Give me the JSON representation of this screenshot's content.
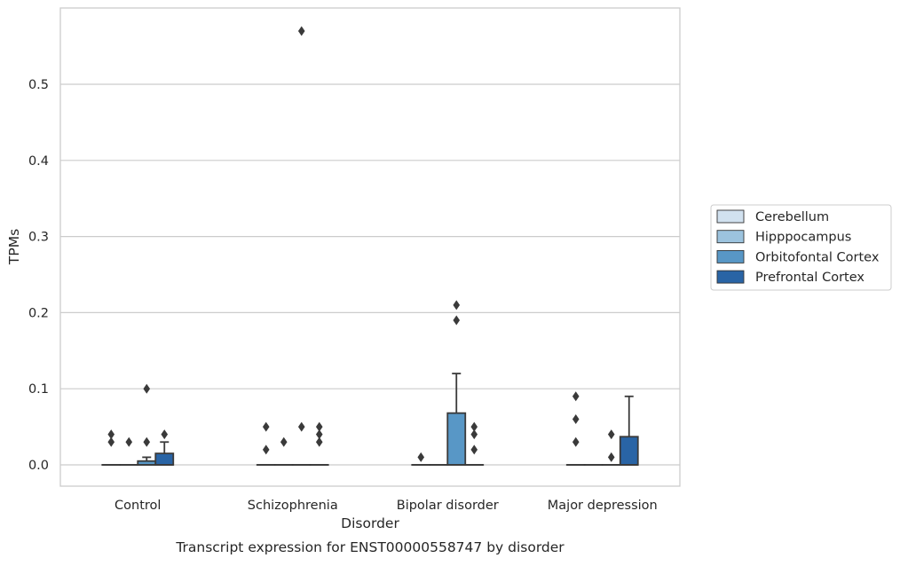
{
  "chart_data": {
    "type": "box",
    "title": "",
    "caption": "Transcript expression for ENST00000558747 by disorder",
    "xlabel": "Disorder",
    "ylabel": "TPMs",
    "ylim": [
      -0.028,
      0.6
    ],
    "yticks": [
      "0.0",
      "0.1",
      "0.2",
      "0.3",
      "0.4",
      "0.5"
    ],
    "grid": "horizontal",
    "legend_position": "right",
    "categories": [
      "Control",
      "Schizophrenia",
      "Bipolar disorder",
      "Major depression"
    ],
    "series": [
      {
        "name": "Cerebellum",
        "color": "#d1e1ef",
        "boxes": [
          {
            "q1": 0,
            "median": 0,
            "q3": 0,
            "whisker_low": 0,
            "whisker_high": 0,
            "outliers": [
              0.03,
              0.04
            ]
          },
          {
            "q1": 0,
            "median": 0,
            "q3": 0,
            "whisker_low": 0,
            "whisker_high": 0,
            "outliers": [
              0.02,
              0.05
            ]
          },
          {
            "q1": 0,
            "median": 0,
            "q3": 0,
            "whisker_low": 0,
            "whisker_high": 0,
            "outliers": [
              0.01
            ]
          },
          {
            "q1": 0,
            "median": 0,
            "q3": 0,
            "whisker_low": 0,
            "whisker_high": 0,
            "outliers": [
              0.03,
              0.06,
              0.09
            ]
          }
        ]
      },
      {
        "name": "Hipppocampus",
        "color": "#9cc3de",
        "boxes": [
          {
            "q1": 0,
            "median": 0,
            "q3": 0,
            "whisker_low": 0,
            "whisker_high": 0,
            "outliers": [
              0.03
            ]
          },
          {
            "q1": 0,
            "median": 0,
            "q3": 0,
            "whisker_low": 0,
            "whisker_high": 0,
            "outliers": [
              0.03
            ]
          },
          {
            "q1": 0,
            "median": 0,
            "q3": 0,
            "whisker_low": 0,
            "whisker_high": 0,
            "outliers": []
          },
          {
            "q1": 0,
            "median": 0,
            "q3": 0,
            "whisker_low": 0,
            "whisker_high": 0,
            "outliers": []
          }
        ]
      },
      {
        "name": "Orbitofontal Cortex",
        "color": "#5897c6",
        "boxes": [
          {
            "q1": 0,
            "median": 0,
            "q3": 0.005,
            "whisker_low": 0,
            "whisker_high": 0.01,
            "outliers": [
              0.03,
              0.1
            ]
          },
          {
            "q1": 0,
            "median": 0,
            "q3": 0,
            "whisker_low": 0,
            "whisker_high": 0,
            "outliers": [
              0.05,
              0.57
            ]
          },
          {
            "q1": 0,
            "median": 0,
            "q3": 0.068,
            "whisker_low": 0,
            "whisker_high": 0.12,
            "outliers": [
              0.19,
              0.21
            ]
          },
          {
            "q1": 0,
            "median": 0,
            "q3": 0,
            "whisker_low": 0,
            "whisker_high": 0,
            "outliers": [
              0.01,
              0.04
            ]
          }
        ]
      },
      {
        "name": "Prefrontal Cortex",
        "color": "#2964a5",
        "boxes": [
          {
            "q1": 0,
            "median": 0,
            "q3": 0.015,
            "whisker_low": 0,
            "whisker_high": 0.03,
            "outliers": [
              0.04
            ]
          },
          {
            "q1": 0,
            "median": 0,
            "q3": 0,
            "whisker_low": 0,
            "whisker_high": 0,
            "outliers": [
              0.03,
              0.04,
              0.05
            ]
          },
          {
            "q1": 0,
            "median": 0,
            "q3": 0,
            "whisker_low": 0,
            "whisker_high": 0,
            "outliers": [
              0.02,
              0.04,
              0.05
            ]
          },
          {
            "q1": 0,
            "median": 0,
            "q3": 0.037,
            "whisker_low": 0,
            "whisker_high": 0.09,
            "outliers": []
          }
        ]
      }
    ]
  }
}
